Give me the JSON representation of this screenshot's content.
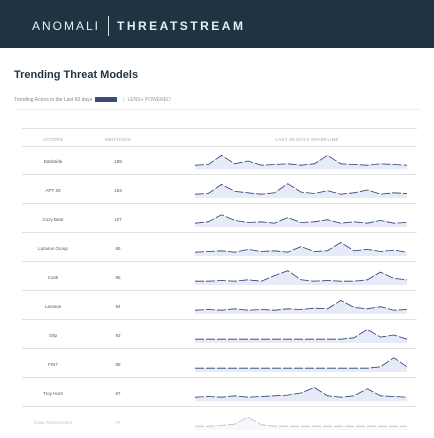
{
  "header": {
    "brand_left": "ANOMALI",
    "brand_right": "THREATSTREAM"
  },
  "page": {
    "title": "Trending Threat Models",
    "subtitle": "Trending Actors in the Last 60 days",
    "subtitle_extra": "LENS+ POWERED"
  },
  "table": {
    "col_actors": "ACTORS",
    "col_mentions": "MENTIONS",
    "col_sparkline": "LAST 60 DAYS SPARKLINE",
    "rows": [
      {
        "actor": "DarkSide",
        "mentions": "189",
        "spark": [
          0.2,
          0.25,
          0.9,
          0.3,
          0.5,
          0.2,
          0.25,
          0.3,
          0.2,
          0.3,
          0.9,
          0.3,
          0.25,
          0.2,
          0.3,
          0.25,
          0.2
        ]
      },
      {
        "actor": "APT 29",
        "mentions": "154",
        "spark": [
          0.2,
          0.25,
          0.9,
          0.4,
          0.3,
          0.2,
          0.3,
          0.95,
          0.35,
          0.25,
          0.45,
          0.2,
          0.3,
          0.5,
          0.2,
          0.3,
          0.25
        ]
      },
      {
        "actor": "Cozy Bear",
        "mentions": "107",
        "spark": [
          0.2,
          0.3,
          0.8,
          0.4,
          0.25,
          0.3,
          0.2,
          0.6,
          0.25,
          0.3,
          0.45,
          0.2,
          0.3,
          0.2,
          0.4,
          0.2,
          0.25
        ]
      },
      {
        "actor": "Lazarus Group",
        "mentions": "95",
        "spark": [
          0.2,
          0.25,
          0.3,
          0.2,
          0.4,
          0.25,
          0.3,
          0.2,
          0.6,
          0.25,
          0.3,
          0.9,
          0.3,
          0.4,
          0.25,
          0.35,
          0.2
        ]
      },
      {
        "actor": "Conti",
        "mentions": "95",
        "spark": [
          0.2,
          0.2,
          0.25,
          0.2,
          0.3,
          0.2,
          0.6,
          0.95,
          0.3,
          0.2,
          0.25,
          0.2,
          0.2,
          0.3,
          0.85,
          0.4,
          0.3
        ]
      },
      {
        "actor": "Lazarus",
        "mentions": "94",
        "spark": [
          0.2,
          0.25,
          0.2,
          0.3,
          0.2,
          0.25,
          0.2,
          0.3,
          0.25,
          0.35,
          0.3,
          0.9,
          0.4,
          0.3,
          0.45,
          0.2,
          0.25
        ]
      },
      {
        "actor": "Olip",
        "mentions": "93",
        "spark": [
          0.2,
          0.2,
          0.2,
          0.2,
          0.2,
          0.2,
          0.2,
          0.2,
          0.2,
          0.2,
          0.2,
          0.2,
          0.3,
          0.9,
          0.35,
          0.5,
          0.2
        ]
      },
      {
        "actor": "FIN7",
        "mentions": "88",
        "spark": [
          0.2,
          0.2,
          0.2,
          0.2,
          0.2,
          0.2,
          0.2,
          0.2,
          0.2,
          0.2,
          0.2,
          0.2,
          0.2,
          0.2,
          0.3,
          0.95,
          0.3
        ]
      },
      {
        "actor": "Troy Hunt",
        "mentions": "87",
        "spark": [
          0.2,
          0.25,
          0.2,
          0.3,
          0.2,
          0.25,
          0.3,
          0.35,
          0.5,
          0.9,
          0.3,
          0.2,
          0.3,
          0.8,
          0.3,
          0.25,
          0.2
        ]
      },
      {
        "actor": "Cuba Ransomware",
        "mentions": "79",
        "spark": [
          0.2,
          0.2,
          0.25,
          0.35,
          0.85,
          0.3,
          0.2,
          0.2,
          0.2,
          0.2,
          0.2,
          0.2,
          0.2,
          0.2,
          0.2,
          0.2,
          0.2
        ]
      }
    ]
  },
  "colors": {
    "topbar": "#1f3442",
    "spark_line": "#2a3f6f",
    "spark_fill": "#b9c6e8",
    "accent": "#3a4d79"
  }
}
